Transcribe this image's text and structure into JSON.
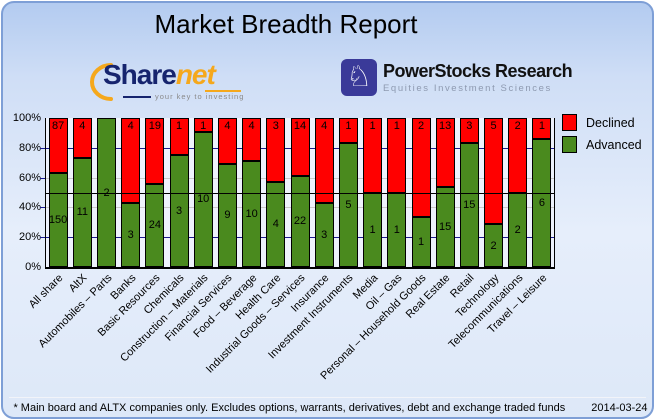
{
  "window": {
    "title": "Market Breadth Report"
  },
  "logos": {
    "sharenet": {
      "name_part1": "Share",
      "name_part2": "net",
      "tagline": "your key to investing",
      "accent_color": "#f5a81c",
      "text_color": "#16246e"
    },
    "powerstocks": {
      "title": "PowerStocks Research",
      "subtitle": "Equities Investment Sciences",
      "knight_icon": "♘",
      "badge_color": "#3a3a99"
    }
  },
  "chart_data": {
    "type": "bar",
    "stacked": true,
    "title": "Market Breadth Report",
    "categories": [
      "All share",
      "AltX",
      "Automobiles – Parts",
      "Banks",
      "Basic Resources",
      "Chemicals",
      "Construction – Materials",
      "Financial Services",
      "Food – Beverage",
      "Health Care",
      "Industrial Goods – Services",
      "Insurance",
      "Investment Instruments",
      "Media",
      "Oil – Gas",
      "Personal – Household Goods",
      "Real Estate",
      "Retail",
      "Technology",
      "Telecommunications",
      "Travel – Leisure"
    ],
    "series": [
      {
        "name": "Declined",
        "color": "#ff0000",
        "values": [
          87,
          4,
          0,
          4,
          19,
          1,
          1,
          4,
          4,
          3,
          14,
          4,
          1,
          1,
          1,
          2,
          13,
          3,
          5,
          2,
          1
        ]
      },
      {
        "name": "Advanced",
        "color": "#4a8a1e",
        "values": [
          150,
          11,
          2,
          3,
          24,
          3,
          10,
          9,
          10,
          4,
          22,
          3,
          5,
          1,
          1,
          1,
          15,
          15,
          2,
          2,
          6
        ]
      }
    ],
    "value_unit": "companies",
    "y_axis": "percent of total (stacked to 100%)",
    "y_ticks": [
      "0%",
      "20%",
      "40%",
      "60%",
      "80%",
      "100%"
    ],
    "ylim": [
      0,
      100
    ],
    "reference_line_percent": 50,
    "grid": "dashes at 20/40/60/80, solid black line at 50",
    "legend_position": "right"
  },
  "legend": {
    "items": [
      {
        "label": "Declined",
        "color": "#ff0000"
      },
      {
        "label": "Advanced",
        "color": "#4a8a1e"
      }
    ]
  },
  "footer": {
    "note": "* Main board and ALTX companies only. Excludes options, warrants, derivatives, debt and exchange traded funds",
    "date": "2014-03-24"
  }
}
